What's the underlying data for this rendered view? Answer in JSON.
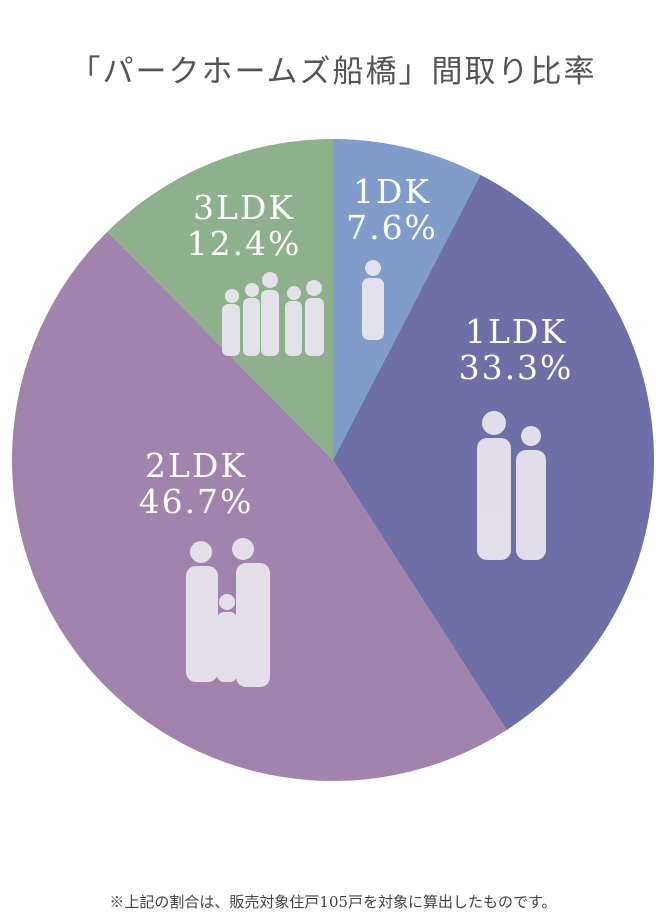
{
  "chart_data": {
    "type": "pie",
    "title": "「パークホームズ船橋」間取り比率",
    "categories": [
      "1DK",
      "1LDK",
      "2LDK",
      "3LDK"
    ],
    "values": [
      7.6,
      33.3,
      46.7,
      12.4
    ],
    "value_labels": [
      "7.6%",
      "33.3%",
      "46.7%",
      "12.4%"
    ],
    "colors": [
      "#7f9ccb",
      "#6e6fa6",
      "#a084ae",
      "#8fb08c"
    ],
    "footnote": "※上記の割合は、販売対象住戸105戸を対象に算出したものです。"
  }
}
